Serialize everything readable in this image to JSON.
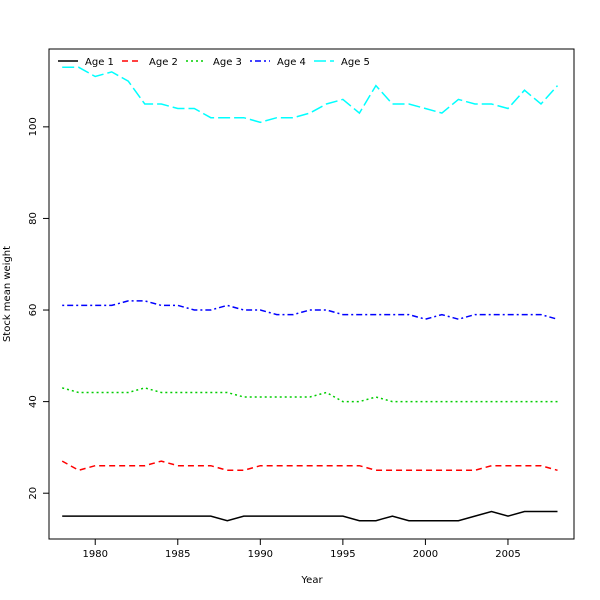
{
  "chart_data": {
    "type": "line",
    "xlabel": "Year",
    "ylabel": "Stock mean weight",
    "xlim": [
      1977.2,
      2009.0
    ],
    "ylim": [
      10.0,
      117.0
    ],
    "x_ticks": [
      1980,
      1985,
      1990,
      1995,
      2000,
      2005
    ],
    "y_ticks": [
      20,
      40,
      60,
      80,
      100
    ],
    "legend_position": "top-left",
    "x": [
      1978,
      1979,
      1980,
      1981,
      1982,
      1983,
      1984,
      1985,
      1986,
      1987,
      1988,
      1989,
      1990,
      1991,
      1992,
      1993,
      1994,
      1995,
      1996,
      1997,
      1998,
      1999,
      2000,
      2001,
      2002,
      2003,
      2004,
      2005,
      2006,
      2007,
      2008
    ],
    "series": [
      {
        "name": "Age 1",
        "color": "#000000",
        "dash": "solid",
        "values": [
          15,
          15,
          15,
          15,
          15,
          15,
          15,
          15,
          15,
          15,
          14,
          15,
          15,
          15,
          15,
          15,
          15,
          15,
          14,
          14,
          15,
          14,
          14,
          14,
          14,
          15,
          16,
          15,
          16,
          16,
          16
        ]
      },
      {
        "name": "Age 2",
        "color": "#ff0000",
        "dash": "dashed",
        "values": [
          27,
          25,
          26,
          26,
          26,
          26,
          27,
          26,
          26,
          26,
          25,
          25,
          26,
          26,
          26,
          26,
          26,
          26,
          26,
          25,
          25,
          25,
          25,
          25,
          25,
          25,
          26,
          26,
          26,
          26,
          25
        ]
      },
      {
        "name": "Age 3",
        "color": "#00cd00",
        "dash": "dotted",
        "values": [
          43,
          42,
          42,
          42,
          42,
          43,
          42,
          42,
          42,
          42,
          42,
          41,
          41,
          41,
          41,
          41,
          42,
          40,
          40,
          41,
          40,
          40,
          40,
          40,
          40,
          40,
          40,
          40,
          40,
          40,
          40
        ]
      },
      {
        "name": "Age 4",
        "color": "#0000ff",
        "dash": "dotdash",
        "values": [
          61,
          61,
          61,
          61,
          62,
          62,
          61,
          61,
          60,
          60,
          61,
          60,
          60,
          59,
          59,
          60,
          60,
          59,
          59,
          59,
          59,
          59,
          58,
          59,
          58,
          59,
          59,
          59,
          59,
          59,
          58
        ]
      },
      {
        "name": "Age 5",
        "color": "#00ffff",
        "dash": "longdash",
        "values": [
          113,
          113,
          111,
          112,
          110,
          105,
          105,
          104,
          104,
          102,
          102,
          102,
          101,
          102,
          102,
          103,
          105,
          106,
          103,
          109,
          105,
          105,
          104,
          103,
          106,
          105,
          105,
          104,
          108,
          105,
          109
        ]
      }
    ]
  }
}
